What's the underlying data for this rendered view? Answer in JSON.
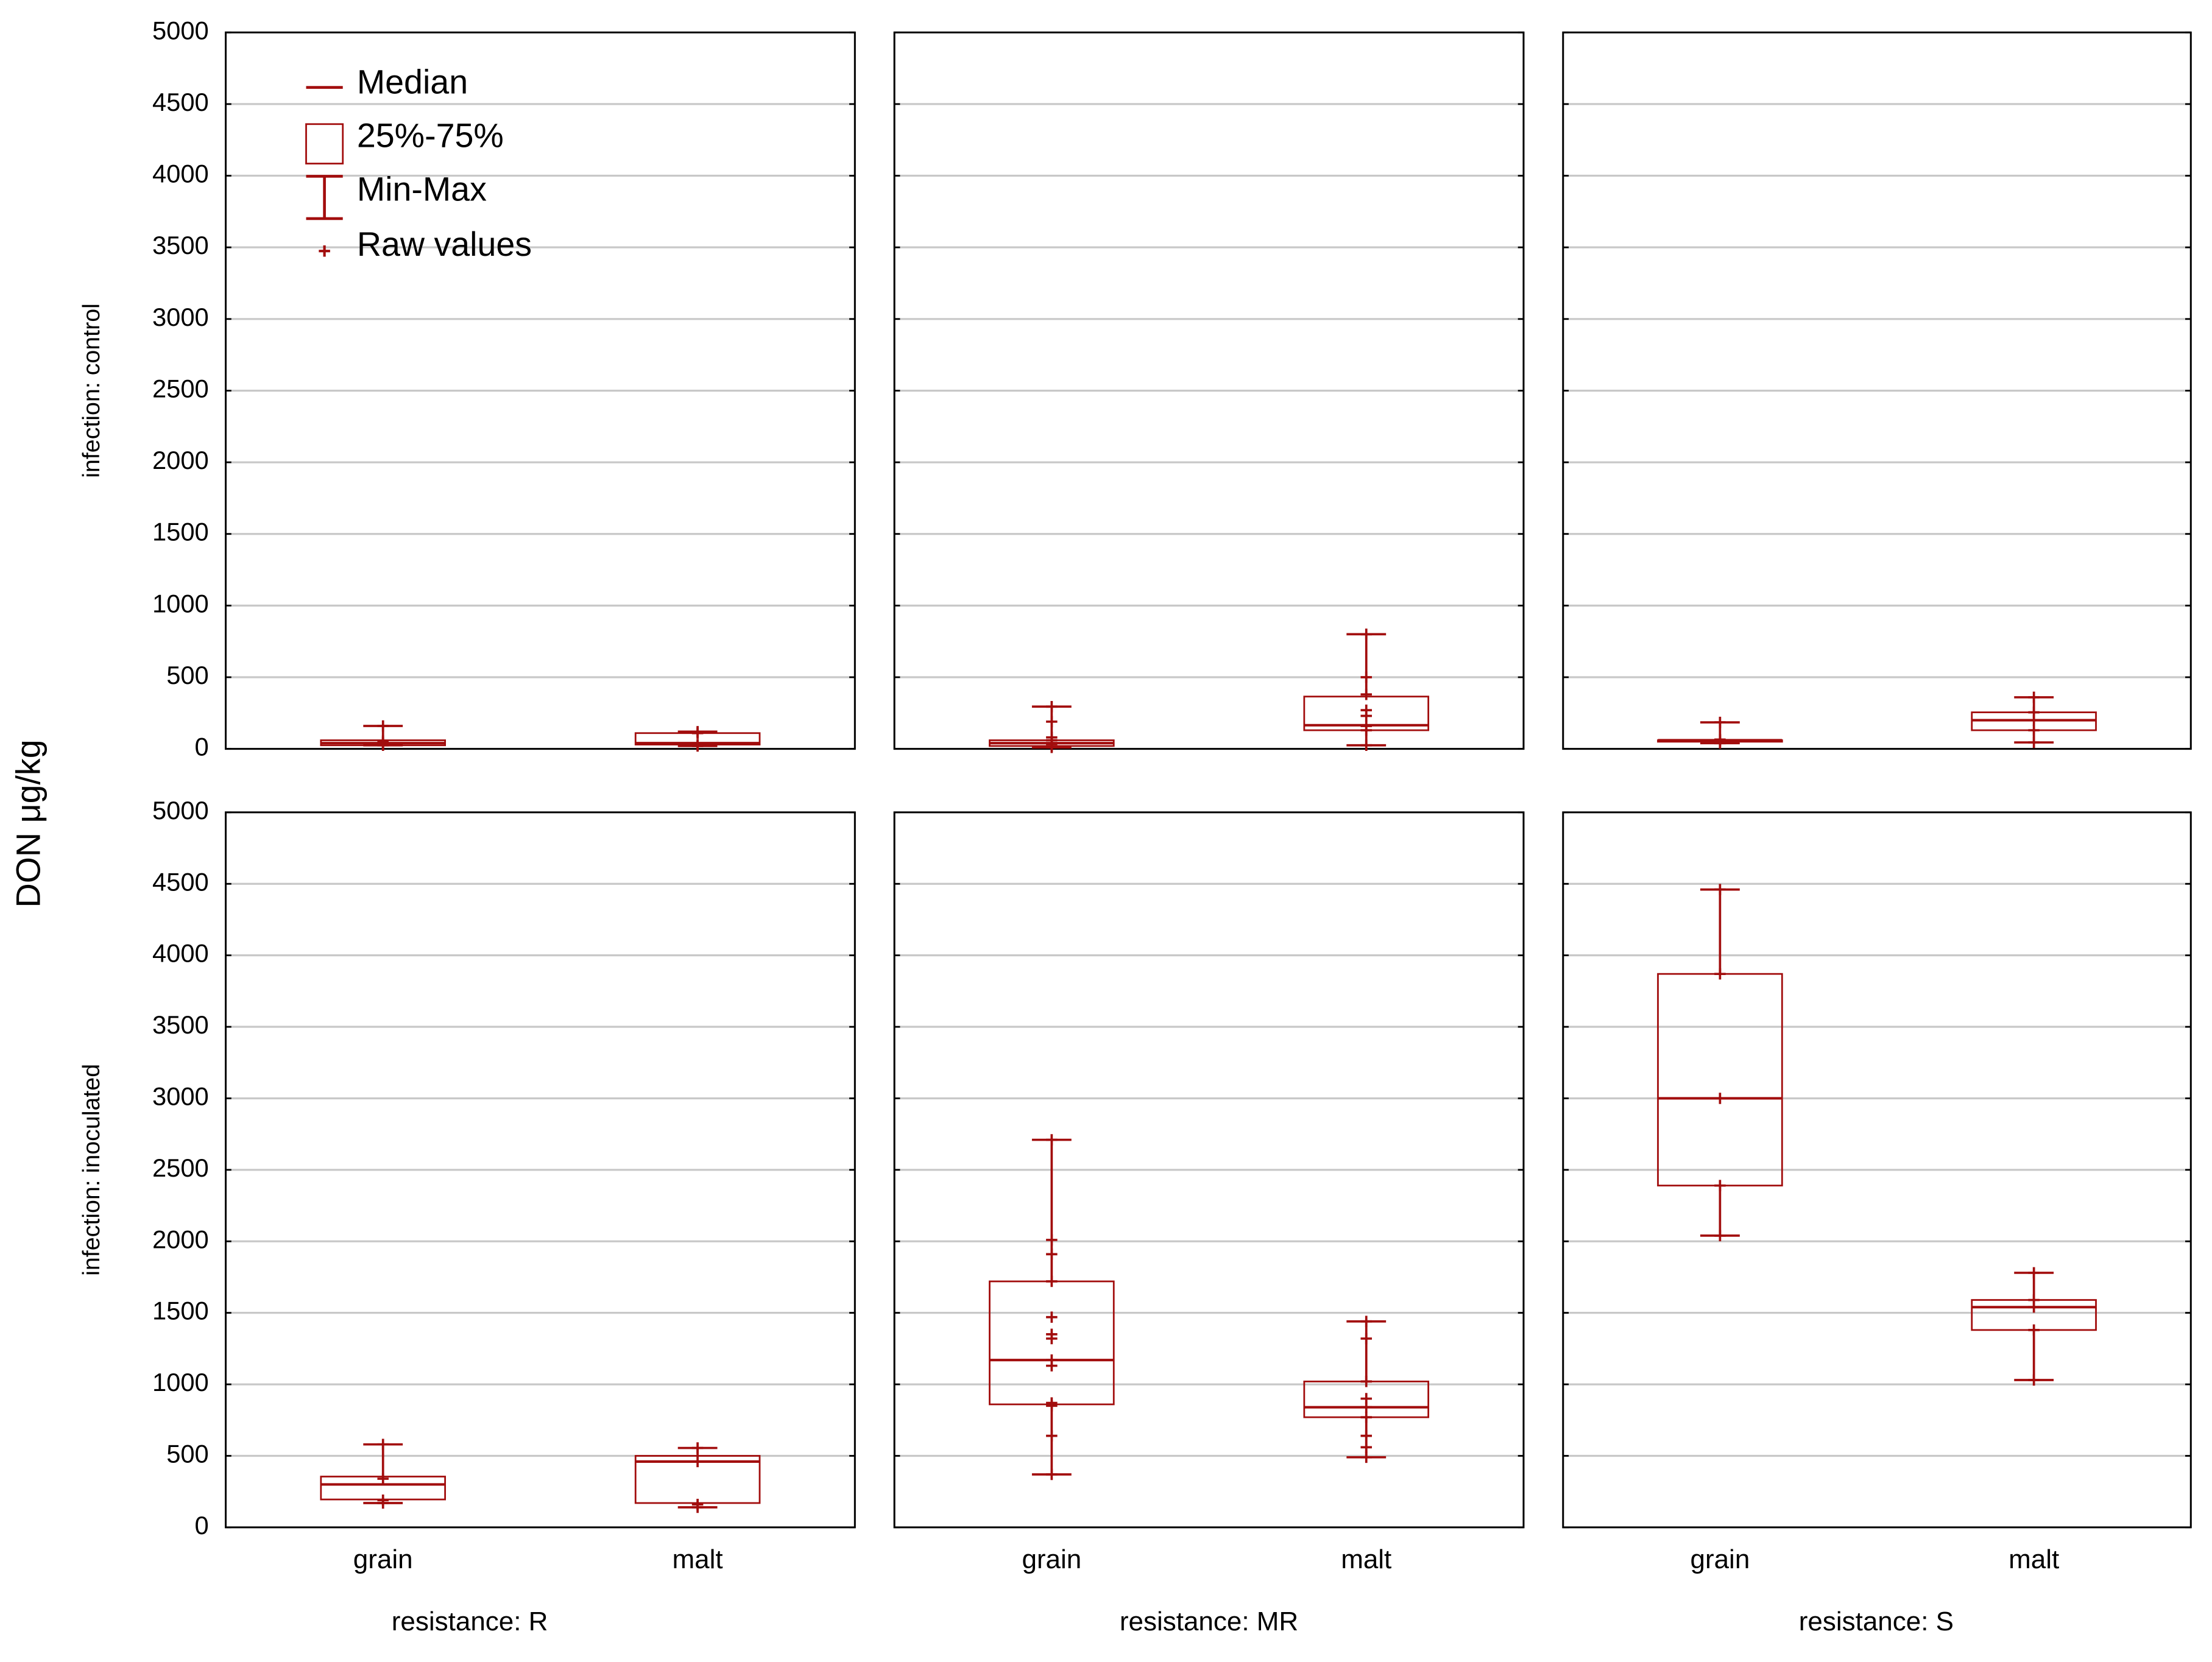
{
  "chart_data": {
    "type": "boxplot",
    "ylabel": "DON μg/kg",
    "ylim": [
      0,
      5000
    ],
    "yticks": [
      0,
      500,
      1000,
      1500,
      2000,
      2500,
      3000,
      3500,
      4000,
      4500,
      5000
    ],
    "grid": true,
    "legend_position": "top-left",
    "legend": [
      {
        "key": "median",
        "label": "Median"
      },
      {
        "key": "box",
        "label": "25%-75%"
      },
      {
        "key": "whisker",
        "label": "Min-Max"
      },
      {
        "key": "raw",
        "label": "Raw values"
      }
    ],
    "row_labels": [
      "infection: control",
      "infection: inoculated"
    ],
    "column_labels": [
      "resistance: R",
      "resistance: MR",
      "resistance: S"
    ],
    "categories": [
      "grain",
      "malt"
    ],
    "panels": [
      {
        "row": 0,
        "col": 0,
        "boxes": [
          {
            "category": "grain",
            "min": 25,
            "q1": 25,
            "median": 40,
            "q3": 60,
            "max": 160,
            "raw": [
              25,
              35,
              45,
              55,
              160
            ]
          },
          {
            "category": "malt",
            "min": 20,
            "q1": 30,
            "median": 40,
            "q3": 110,
            "max": 120,
            "raw": [
              20,
              30,
              110,
              120
            ]
          }
        ]
      },
      {
        "row": 0,
        "col": 1,
        "boxes": [
          {
            "category": "grain",
            "min": 10,
            "q1": 20,
            "median": 40,
            "q3": 60,
            "max": 295,
            "raw": [
              10,
              20,
              35,
              60,
              80,
              190,
              295
            ]
          },
          {
            "category": "malt",
            "min": 25,
            "q1": 130,
            "median": 165,
            "q3": 365,
            "max": 800,
            "raw": [
              25,
              130,
              160,
              230,
              270,
              380,
              500,
              800
            ]
          }
        ]
      },
      {
        "row": 0,
        "col": 2,
        "boxes": [
          {
            "category": "grain",
            "min": 40,
            "q1": 50,
            "median": 60,
            "q3": 60,
            "max": 185,
            "raw": [
              40,
              55,
              65,
              185
            ]
          },
          {
            "category": "malt",
            "min": 45,
            "q1": 130,
            "median": 200,
            "q3": 255,
            "max": 360,
            "raw": [
              45,
              130,
              200,
              255,
              360
            ]
          }
        ]
      },
      {
        "row": 1,
        "col": 0,
        "boxes": [
          {
            "category": "grain",
            "min": 170,
            "q1": 195,
            "median": 300,
            "q3": 355,
            "max": 580,
            "raw": [
              170,
              190,
              340,
              580
            ]
          },
          {
            "category": "malt",
            "min": 140,
            "q1": 170,
            "median": 460,
            "q3": 500,
            "max": 555,
            "raw": [
              140,
              160,
              460,
              555
            ]
          }
        ]
      },
      {
        "row": 1,
        "col": 1,
        "boxes": [
          {
            "category": "grain",
            "min": 370,
            "q1": 860,
            "median": 1170,
            "q3": 1720,
            "max": 2710,
            "raw": [
              370,
              640,
              850,
              870,
              1130,
              1170,
              1320,
              1350,
              1470,
              1720,
              1910,
              2010,
              2710
            ]
          },
          {
            "category": "malt",
            "min": 490,
            "q1": 770,
            "median": 840,
            "q3": 1020,
            "max": 1440,
            "raw": [
              490,
              560,
              640,
              770,
              840,
              900,
              1020,
              1320,
              1440
            ]
          }
        ]
      },
      {
        "row": 1,
        "col": 2,
        "boxes": [
          {
            "category": "grain",
            "min": 2040,
            "q1": 2390,
            "median": 3000,
            "q3": 3870,
            "max": 4460,
            "raw": [
              2040,
              2390,
              3000,
              3870,
              4460
            ]
          },
          {
            "category": "malt",
            "min": 1030,
            "q1": 1380,
            "median": 1540,
            "q3": 1590,
            "max": 1780,
            "raw": [
              1030,
              1380,
              1540,
              1590,
              1780
            ]
          }
        ]
      }
    ]
  }
}
